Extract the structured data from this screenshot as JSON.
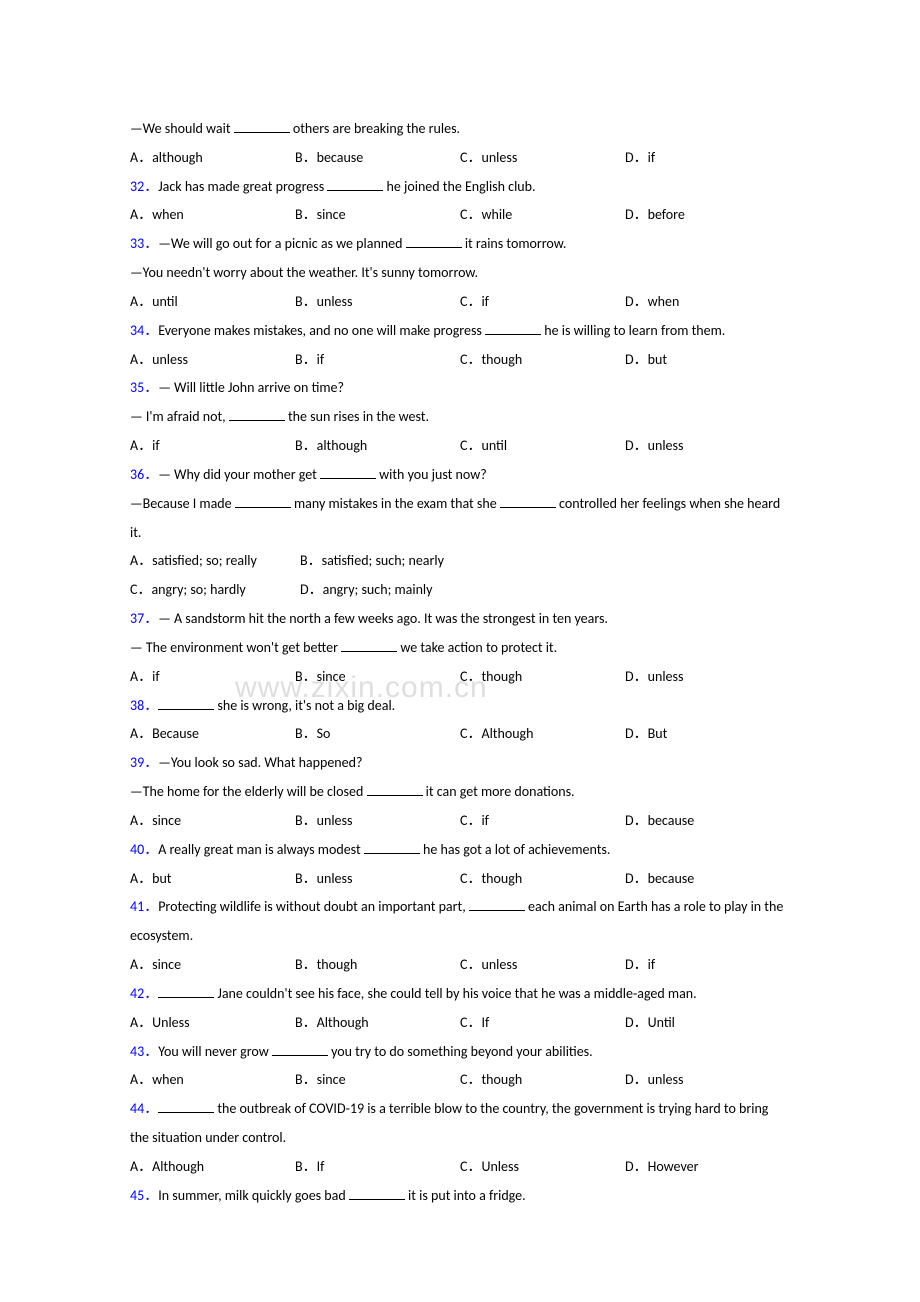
{
  "watermark": "www.zixin.com.cn",
  "lines": [
    {
      "type": "text",
      "content": [
        "—We should wait ",
        {
          "blank": true
        },
        " others are breaking the rules."
      ]
    },
    {
      "type": "options",
      "a": "A．although",
      "b": "B．because",
      "c": "C．unless",
      "d": "D．if"
    },
    {
      "type": "text",
      "content": [
        {
          "qnum": "32．"
        },
        "Jack has made great progress ",
        {
          "blank": true
        },
        " he joined the English club."
      ]
    },
    {
      "type": "options",
      "a": "A．when",
      "b": "B．since",
      "c": "C．while",
      "d": "D．before"
    },
    {
      "type": "text",
      "content": [
        {
          "qnum": "33．"
        },
        "—We will go out for a picnic as we planned ",
        {
          "blank": true
        },
        " it rains tomorrow."
      ]
    },
    {
      "type": "text",
      "content": [
        "—You needn't worry about the weather. It's sunny tomorrow."
      ]
    },
    {
      "type": "options",
      "a": "A．until",
      "b": "B．unless",
      "c": "C．if",
      "d": "D．when"
    },
    {
      "type": "text",
      "wrap": true,
      "content": [
        {
          "qnum": "34．"
        },
        "Everyone makes mistakes, and no one will make progress ",
        {
          "blank": true
        },
        " he is willing to learn from them."
      ]
    },
    {
      "type": "options",
      "a": "A．unless",
      "b": "B．if",
      "c": "C．though",
      "d": "D．but"
    },
    {
      "type": "text",
      "content": [
        {
          "qnum": "35．"
        },
        "— Will little John arrive on time?"
      ]
    },
    {
      "type": "text",
      "content": [
        "— I'm afraid not, ",
        {
          "blank": true
        },
        " the sun rises in the west."
      ]
    },
    {
      "type": "options",
      "a": "A．if",
      "b": "B．although",
      "c": "C．until",
      "d": "D．unless"
    },
    {
      "type": "text",
      "content": [
        {
          "qnum": "36．"
        },
        "— Why did your mother get ",
        {
          "blank": true
        },
        " with you just now?"
      ]
    },
    {
      "type": "text",
      "wrap": true,
      "content": [
        "—Because I made ",
        {
          "blank": true
        },
        " many mistakes in the exam that she ",
        {
          "blank": true
        },
        " controlled her feelings when she heard it."
      ]
    },
    {
      "type": "options2",
      "a": "A．satisfied; so; really",
      "b": "B．satisfied; such; nearly"
    },
    {
      "type": "options2",
      "a": "C．angry; so; hardly",
      "b": "D．angry; such; mainly"
    },
    {
      "type": "text",
      "content": [
        {
          "qnum": "37．"
        },
        "— A sandstorm hit the north a few weeks ago. It was the strongest in ten years."
      ]
    },
    {
      "type": "text",
      "content": [
        "— The environment won't get better ",
        {
          "blank": true
        },
        " we take action to protect it."
      ]
    },
    {
      "type": "options",
      "a": "A．if",
      "b": "B．since",
      "c": "C．though",
      "d": "D．unless"
    },
    {
      "type": "text",
      "content": [
        {
          "qnum": "38．"
        },
        {
          "blank": true
        },
        " she is wrong, it's not a big deal."
      ]
    },
    {
      "type": "options",
      "a": "A．Because",
      "b": "B．So",
      "c": "C．Although",
      "d": "D．But"
    },
    {
      "type": "text",
      "content": [
        {
          "qnum": "39．"
        },
        "—You look so sad. What happened?"
      ]
    },
    {
      "type": "text",
      "content": [
        "—The home for the elderly will be closed ",
        {
          "blank": true
        },
        " it can get more donations."
      ]
    },
    {
      "type": "options",
      "a": "A．since",
      "b": "B．unless",
      "c": "C．if",
      "d": "D．because"
    },
    {
      "type": "text",
      "content": [
        {
          "qnum": "40．"
        },
        "A really great man is always modest ",
        {
          "blank": true
        },
        " he has got a lot of achievements."
      ]
    },
    {
      "type": "options",
      "a": "A．but",
      "b": "B．unless",
      "c": "C．though",
      "d": "D．because"
    },
    {
      "type": "text",
      "wrap": true,
      "content": [
        {
          "qnum": "41．"
        },
        "Protecting wildlife is without doubt an important part, ",
        {
          "blank": true
        },
        " each animal on Earth has a role to play in the ecosystem."
      ]
    },
    {
      "type": "options",
      "a": "A．since",
      "b": "B．though",
      "c": "C．unless",
      "d": "D．if"
    },
    {
      "type": "text",
      "wrap": true,
      "content": [
        {
          "qnum": "42．"
        },
        {
          "blank": true
        },
        " Jane couldn't see his face, she could tell by his voice that he was a middle-aged man."
      ]
    },
    {
      "type": "options",
      "a": "A．Unless",
      "b": "B．Although",
      "c": "C．If",
      "d": "D．Until"
    },
    {
      "type": "text",
      "content": [
        {
          "qnum": "43．"
        },
        "You will never grow ",
        {
          "blank": true
        },
        " you try to do something beyond your abilities."
      ]
    },
    {
      "type": "options",
      "a": "A．when",
      "b": "B．since",
      "c": "C．though",
      "d": "D．unless"
    },
    {
      "type": "text",
      "wrap": true,
      "content": [
        {
          "qnum": "44．"
        },
        {
          "blank": true
        },
        " the outbreak of COVID-19 is a terrible blow to the country, the government is trying hard to bring the situation under control."
      ]
    },
    {
      "type": "options",
      "a": "A．Although",
      "b": "B．If",
      "c": "C．Unless",
      "d": "D．However"
    },
    {
      "type": "text",
      "content": [
        {
          "qnum": "45．"
        },
        "In summer, milk quickly goes bad ",
        {
          "blank": true
        },
        " it is put into a fridge."
      ]
    }
  ]
}
